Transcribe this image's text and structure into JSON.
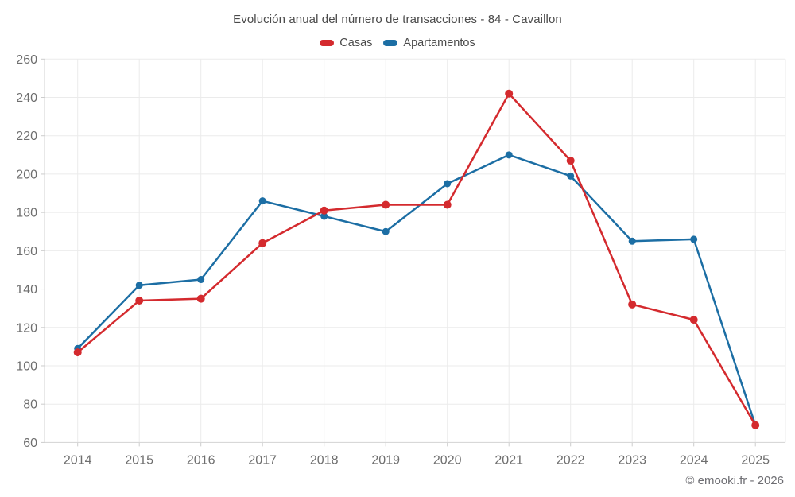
{
  "chart_data": {
    "type": "line",
    "title": "Evolución anual del número de transacciones - 84 - Cavaillon",
    "categories": [
      "2014",
      "2015",
      "2016",
      "2017",
      "2018",
      "2019",
      "2020",
      "2021",
      "2022",
      "2023",
      "2024",
      "2025"
    ],
    "series": [
      {
        "name": "Casas",
        "color": "#d42a2e",
        "values": [
          107,
          134,
          135,
          164,
          181,
          184,
          184,
          242,
          207,
          132,
          124,
          69
        ]
      },
      {
        "name": "Apartamentos",
        "color": "#1c6ea4",
        "values": [
          109,
          142,
          145,
          186,
          178,
          170,
          195,
          210,
          199,
          165,
          166,
          69
        ]
      }
    ],
    "xlabel": "",
    "ylabel": "",
    "ylim": [
      60,
      260
    ],
    "yticks": [
      60,
      80,
      100,
      120,
      140,
      160,
      180,
      200,
      220,
      240,
      260
    ],
    "grid": true,
    "legend_position": "top"
  },
  "footer": {
    "copyright": "© emooki.fr - 2026"
  },
  "colors": {
    "gridline": "#ebebeb",
    "axis_line": "#d2d2d2",
    "tick": "#cccccc",
    "axis_label": "#6e6e6e",
    "title_text": "#4a4a4a"
  }
}
